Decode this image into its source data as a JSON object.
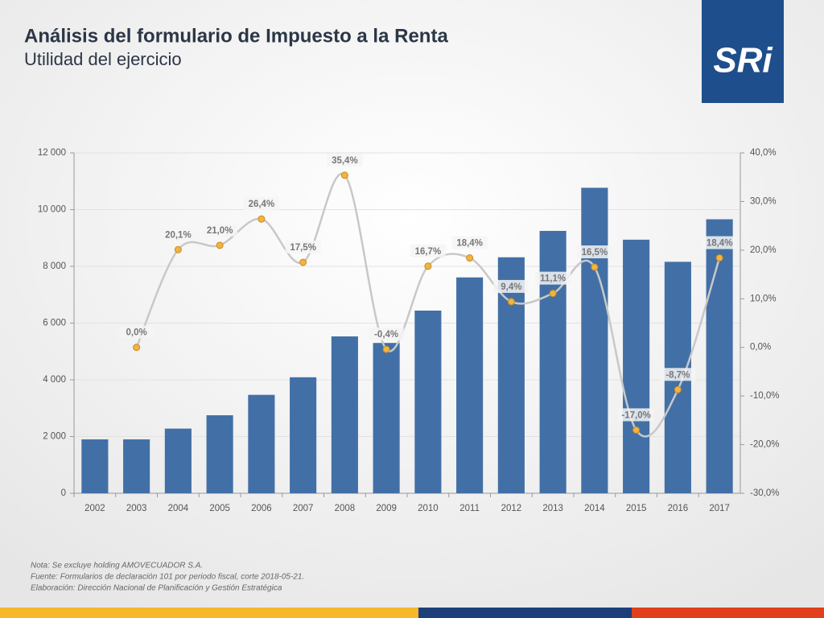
{
  "logo": "SRi",
  "chart_data": {
    "type": "bar",
    "title": "Análisis del formulario de Impuesto a la Renta",
    "subtitle": "Utilidad del ejercicio",
    "categories": [
      "2002",
      "2003",
      "2004",
      "2005",
      "2006",
      "2007",
      "2008",
      "2009",
      "2010",
      "2011",
      "2012",
      "2013",
      "2014",
      "2015",
      "2016",
      "2017"
    ],
    "series": [
      {
        "type": "bar",
        "color": "#4270a6",
        "values": [
          1900,
          1900,
          2280,
          2750,
          3470,
          4090,
          5530,
          5300,
          6440,
          7610,
          8320,
          9250,
          10770,
          8940,
          8160,
          9660
        ]
      },
      {
        "type": "line",
        "axis": "y2",
        "color": "#c8c8c8",
        "marker_color": "#f2b441",
        "values": [
          null,
          0.0,
          20.1,
          21.0,
          26.4,
          17.5,
          35.4,
          -0.4,
          16.7,
          18.4,
          9.4,
          11.1,
          16.5,
          -17.0,
          -8.7,
          18.4
        ],
        "value_labels": [
          null,
          "0,0%",
          "20,1%",
          "21,0%",
          "26,4%",
          "17,5%",
          "35,4%",
          "-0,4%",
          "16,7%",
          "18,4%",
          "9,4%",
          "11,1%",
          "16,5%",
          "-17,0%",
          "-8,7%",
          "18,4%"
        ]
      }
    ],
    "ylim": [
      0,
      12000
    ],
    "yticks": [
      0,
      {
        "value": 2000,
        "label": "2 000"
      },
      {
        "value": 4000,
        "label": "4 000"
      },
      {
        "value": 6000,
        "label": "6 000"
      },
      {
        "value": 8000,
        "label": "8 000"
      },
      {
        "value": 10000,
        "label": "10 000"
      },
      {
        "value": 12000,
        "label": "12 000"
      }
    ],
    "y2lim": [
      -30,
      40
    ],
    "y2ticks": [
      {
        "value": -30,
        "label": "-30,0%"
      },
      {
        "value": -20,
        "label": "-20,0%"
      },
      {
        "value": -10,
        "label": "-10,0%"
      },
      {
        "value": 0,
        "label": "0,0%"
      },
      {
        "value": 10,
        "label": "10,0%"
      },
      {
        "value": 20,
        "label": "20,0%"
      },
      {
        "value": 30,
        "label": "30,0%"
      },
      {
        "value": 40,
        "label": "40,0%"
      }
    ],
    "grid": true,
    "notes": [
      "Nota: Se excluye holding AMOVECUADOR S.A.",
      "Fuente: Formularios de declaración 101 por periodo fiscal, corte 2018-05-21.",
      "Elaboración: Dirección Nacional de Planificación y Gestión Estratégica"
    ]
  }
}
